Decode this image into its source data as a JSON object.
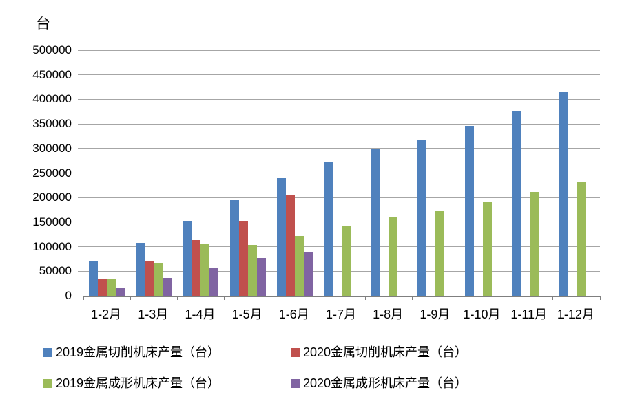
{
  "unit_label": "台",
  "chart_data": {
    "type": "bar",
    "title": "",
    "xlabel": "",
    "ylabel": "台",
    "ylim": [
      0,
      500000
    ],
    "ytick_step": 50000,
    "ytick_labels": [
      "0",
      "50000",
      "100000",
      "150000",
      "200000",
      "250000",
      "300000",
      "350000",
      "400000",
      "450000",
      "500000"
    ],
    "grid": true,
    "legend_position": "bottom",
    "categories": [
      "1-2月",
      "1-3月",
      "1-4月",
      "1-5月",
      "1-6月",
      "1-7月",
      "1-8月",
      "1-9月",
      "1-10月",
      "1-11月",
      "1-12月"
    ],
    "series": [
      {
        "name": "2019金属切削机床产量（台）",
        "color": "#4F81BD",
        "values": [
          70000,
          108000,
          152000,
          195000,
          240000,
          272000,
          300000,
          316000,
          346000,
          375000,
          415000
        ]
      },
      {
        "name": "2020金属切削机床产量（台）",
        "color": "#C0504D",
        "values": [
          35000,
          72000,
          113000,
          153000,
          204000,
          null,
          null,
          null,
          null,
          null,
          null
        ]
      },
      {
        "name": "2019金属成形机床产量（台）",
        "color": "#9BBB59",
        "values": [
          33000,
          66000,
          105000,
          104000,
          122000,
          142000,
          161000,
          172000,
          190000,
          211000,
          233000
        ]
      },
      {
        "name": "2020金属成形机床产量（台）",
        "color": "#8064A2",
        "values": [
          17000,
          36000,
          57000,
          77000,
          90000,
          null,
          null,
          null,
          null,
          null,
          null
        ]
      }
    ]
  },
  "colors": {
    "gridline": "#A6A6A6",
    "axis": "#7F7F7F",
    "background": "#FFFFFF"
  }
}
